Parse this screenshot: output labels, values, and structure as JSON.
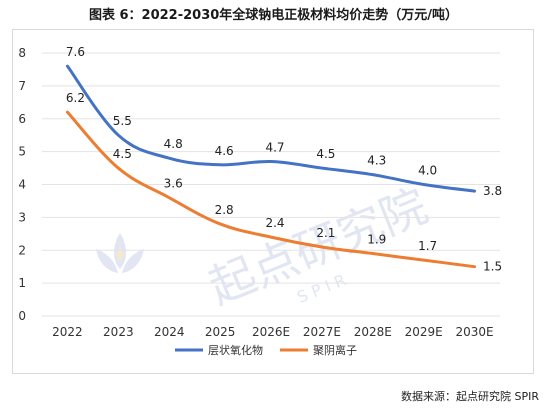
{
  "title": "图表 6：2022-2030年全球钠电正极材料均价走势（万元/吨）",
  "source_note": "数据来源：起点研究院 SPIR",
  "watermark": {
    "text": "起点研究院",
    "subtext": "S P I R"
  },
  "colors": {
    "series_1": "#4472C4",
    "series_2": "#ED7D31",
    "gridline": "#e3e3e3",
    "watermark": "#c9d3e8"
  },
  "chart_data": {
    "type": "line",
    "categories": [
      "2022",
      "2023",
      "2024",
      "2025",
      "2026E",
      "2027E",
      "2028E",
      "2029E",
      "2030E"
    ],
    "series": [
      {
        "name": "层状氧化物",
        "values": [
          7.6,
          5.5,
          4.8,
          4.6,
          4.7,
          4.5,
          4.3,
          4.0,
          3.8
        ]
      },
      {
        "name": "聚阴离子",
        "values": [
          6.2,
          4.5,
          3.6,
          2.8,
          2.4,
          2.1,
          1.9,
          1.7,
          1.5
        ]
      }
    ],
    "yticks": [
      "0",
      "1",
      "2",
      "3",
      "4",
      "5",
      "6",
      "7",
      "8"
    ],
    "ylim": [
      0,
      8
    ],
    "grid": true,
    "legend_position": "bottom",
    "smooth": true
  }
}
